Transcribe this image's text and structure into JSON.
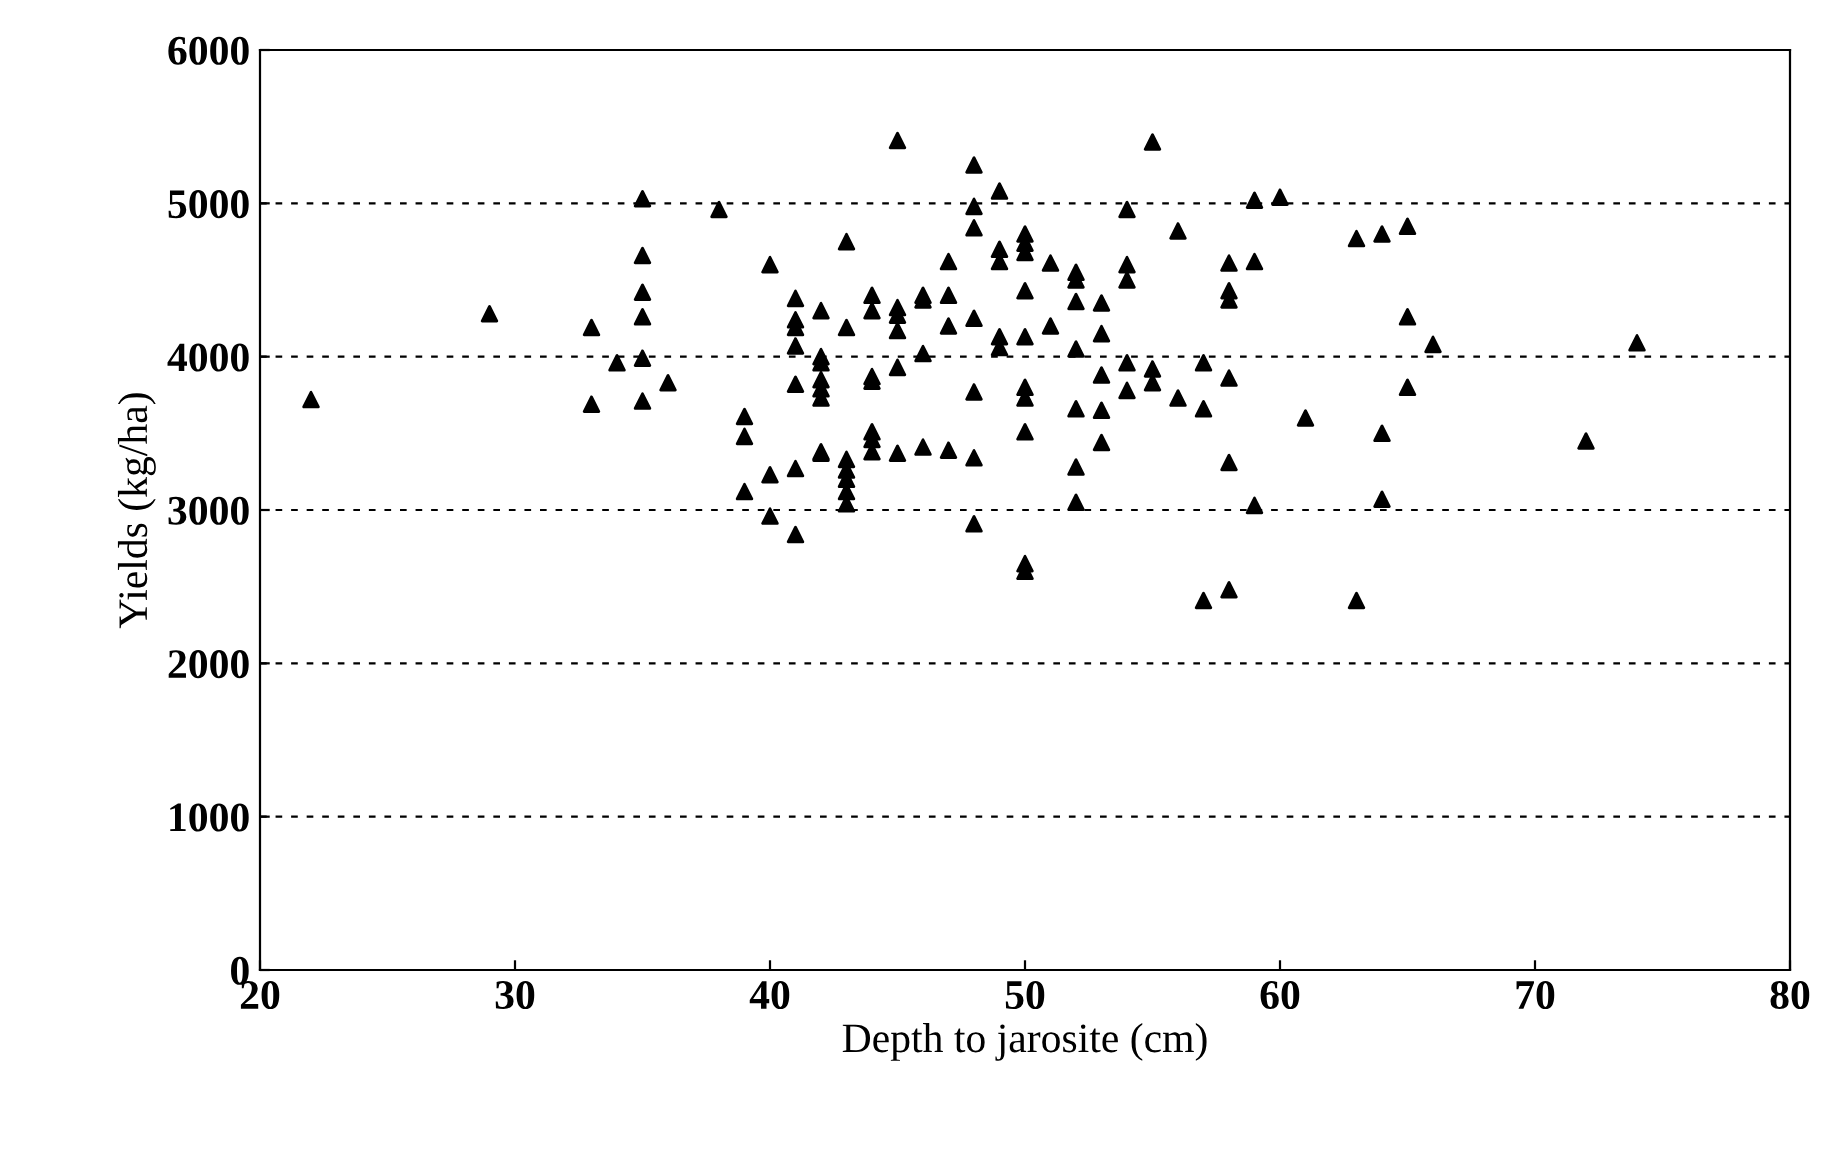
{
  "chart_data": {
    "type": "scatter",
    "xlabel": "Depth to jarosite (cm)",
    "ylabel": "Yields (kg/ha)",
    "xlim": [
      20,
      80
    ],
    "xticks": [
      20,
      30,
      40,
      50,
      60,
      70,
      80
    ],
    "ylim": [
      0,
      6000
    ],
    "yticks": [
      0,
      1000,
      2000,
      3000,
      4000,
      5000,
      6000
    ],
    "grid": "y",
    "marker": "triangle",
    "series": [
      {
        "color": "#000000",
        "x": [
          22,
          29,
          33,
          33,
          34,
          35,
          35,
          35,
          35,
          35,
          35,
          36,
          38,
          39,
          39,
          39,
          40,
          40,
          40,
          41,
          41,
          41,
          41,
          41,
          41,
          41,
          42,
          42,
          42,
          42,
          42,
          42,
          42,
          42,
          43,
          43,
          43,
          43,
          43,
          43,
          43,
          44,
          44,
          44,
          44,
          44,
          44,
          44,
          45,
          45,
          45,
          45,
          45,
          45,
          46,
          46,
          46,
          46,
          47,
          47,
          47,
          47,
          48,
          48,
          48,
          48,
          48,
          48,
          48,
          49,
          49,
          49,
          49,
          49,
          50,
          50,
          50,
          50,
          50,
          50,
          50,
          50,
          50,
          50,
          51,
          51,
          52,
          52,
          52,
          52,
          52,
          52,
          52,
          53,
          53,
          53,
          53,
          53,
          54,
          54,
          54,
          54,
          54,
          55,
          55,
          55,
          56,
          56,
          57,
          57,
          57,
          58,
          58,
          58,
          58,
          58,
          58,
          59,
          59,
          59,
          60,
          61,
          63,
          63,
          64,
          64,
          64,
          65,
          65,
          65,
          66,
          72,
          74
        ],
        "values": [
          3720,
          4280,
          4190,
          3690,
          3960,
          5030,
          4660,
          4420,
          4260,
          3990,
          3710,
          3830,
          4960,
          3610,
          3480,
          3120,
          4600,
          3230,
          2960,
          4380,
          4240,
          4190,
          4070,
          3820,
          3270,
          2840,
          4300,
          4000,
          3960,
          3850,
          3790,
          3730,
          3380,
          3370,
          4750,
          4190,
          3330,
          3260,
          3200,
          3120,
          3040,
          4400,
          4300,
          3870,
          3840,
          3510,
          3460,
          3380,
          5410,
          4320,
          4270,
          4170,
          3930,
          3370,
          4400,
          4370,
          4020,
          3410,
          4620,
          4400,
          4200,
          3390,
          5250,
          4980,
          4840,
          4250,
          3770,
          3340,
          2910,
          5080,
          4700,
          4620,
          4130,
          4060,
          4800,
          4740,
          4680,
          4430,
          4130,
          3800,
          3730,
          3510,
          2650,
          2600,
          4610,
          4200,
          4550,
          4500,
          4360,
          4050,
          3660,
          3280,
          3050,
          4350,
          4150,
          3880,
          3650,
          3440,
          4960,
          4600,
          4500,
          3960,
          3780,
          5400,
          3920,
          3830,
          4820,
          3730,
          3960,
          3660,
          2410,
          4610,
          4430,
          4370,
          3860,
          3310,
          2480,
          5020,
          4620,
          3030,
          5040,
          3600,
          4770,
          2410,
          4800,
          3500,
          3070,
          4850,
          4260,
          3800,
          4080,
          3450,
          4090
        ]
      }
    ]
  }
}
